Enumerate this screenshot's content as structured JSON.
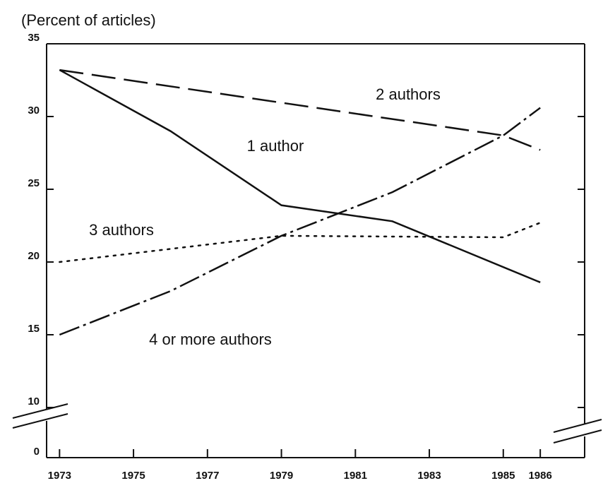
{
  "chart_data": {
    "type": "line",
    "y_label": "(Percent of articles)",
    "xlim": [
      1972.65,
      1987.2
    ],
    "xticks": [
      1973,
      1975,
      1977,
      1979,
      1981,
      1983,
      1985,
      1986
    ],
    "ylim": [
      0,
      35
    ],
    "yticks": [
      0,
      10,
      15,
      20,
      25,
      30,
      35
    ],
    "axis_break": [
      0,
      10
    ],
    "series": [
      {
        "name": "1 author",
        "color": "#111111",
        "style": "solid",
        "x": [
          1973,
          1976,
          1979,
          1982,
          1986
        ],
        "values": [
          33.2,
          29.0,
          23.9,
          22.8,
          18.6
        ]
      },
      {
        "name": "2 authors",
        "color": "#111111",
        "style": "dashed",
        "x": [
          1973,
          1985,
          1986
        ],
        "values": [
          33.2,
          28.7,
          27.7
        ]
      },
      {
        "name": "3 authors",
        "color": "#111111",
        "style": "dotted",
        "x": [
          1973,
          1979,
          1985,
          1986
        ],
        "values": [
          20.0,
          21.8,
          21.7,
          22.7
        ]
      },
      {
        "name": "4 or more authors",
        "color": "#111111",
        "style": "dashdot",
        "x": [
          1973,
          1976,
          1979,
          1982,
          1985,
          1986
        ],
        "values": [
          15.0,
          18.0,
          21.8,
          24.8,
          28.7,
          30.6
        ]
      }
    ]
  }
}
